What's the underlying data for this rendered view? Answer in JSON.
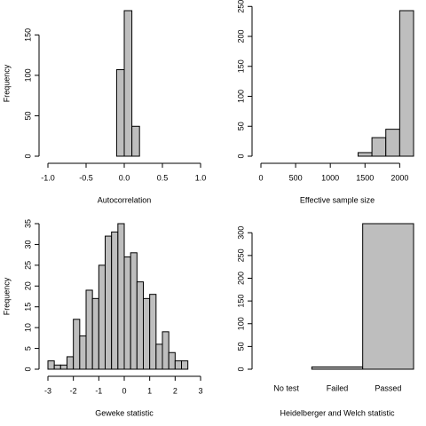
{
  "chart_data": [
    {
      "type": "histogram",
      "xlabel": "Autocorrelation",
      "ylabel": "Frequency",
      "color": "#bebebe",
      "bins": [
        -1,
        -0.9,
        -0.8,
        -0.7,
        -0.6,
        -0.5,
        -0.4,
        -0.3,
        -0.2,
        -0.1,
        0,
        0.1,
        0.2,
        0.3,
        0.4,
        0.5,
        0.6,
        0.7,
        0.8,
        0.9,
        1
      ],
      "values": [
        0,
        0,
        0,
        0,
        0,
        0,
        0,
        0,
        0,
        107,
        180,
        37,
        0,
        0,
        0,
        0,
        0,
        0,
        0,
        0
      ],
      "xlim": [
        -1,
        1
      ],
      "xticks": [
        {
          "value": -1,
          "label": "-1.0"
        },
        {
          "value": -0.5,
          "label": "-0.5"
        },
        {
          "value": 0,
          "label": "0.0"
        },
        {
          "value": 0.5,
          "label": "0.5"
        },
        {
          "value": 1,
          "label": "1.0"
        }
      ],
      "ylim": [
        0,
        180
      ],
      "yticks": [
        0,
        50,
        100,
        150
      ]
    },
    {
      "type": "histogram",
      "xlabel": "Effective sample size",
      "color": "#bebebe",
      "bins": [
        0,
        200,
        400,
        600,
        800,
        1000,
        1200,
        1400,
        1600,
        1800,
        2000,
        2200
      ],
      "values": [
        0,
        0,
        0,
        0,
        0,
        0,
        0,
        6,
        31,
        45,
        243
      ],
      "xlim": [
        0,
        2200
      ],
      "xticks": [
        0,
        500,
        1000,
        1500,
        2000
      ],
      "ylim": [
        0,
        243
      ],
      "yticks": [
        0,
        50,
        100,
        150,
        200,
        250
      ]
    },
    {
      "type": "histogram",
      "xlabel": "Geweke statistic",
      "ylabel": "Frequency",
      "color": "#bebebe",
      "bins": [
        -3,
        -2.75,
        -2.5,
        -2.25,
        -2,
        -1.75,
        -1.5,
        -1.25,
        -1,
        -0.75,
        -0.5,
        -0.25,
        0,
        0.25,
        0.5,
        0.75,
        1,
        1.25,
        1.5,
        1.75,
        2,
        2.25,
        2.5
      ],
      "values": [
        2,
        1,
        1,
        3,
        12,
        8,
        19,
        17,
        25,
        32,
        33,
        35,
        27,
        28,
        21,
        17,
        18,
        6,
        9,
        4,
        2,
        2
      ],
      "xlim": [
        -3,
        3
      ],
      "xticks": [
        -3,
        -2,
        -1,
        0,
        1,
        2,
        3
      ],
      "ylim": [
        0,
        35
      ],
      "yticks": [
        0,
        5,
        10,
        15,
        20,
        25,
        30,
        35
      ]
    },
    {
      "type": "bar",
      "xlabel": "Heidelberger and Welch statistic",
      "color": "#bebebe",
      "categories": [
        "No test",
        "Failed",
        "Passed"
      ],
      "values": [
        0,
        5,
        320
      ],
      "ylim": [
        0,
        320
      ],
      "yticks": [
        0,
        50,
        100,
        150,
        200,
        250,
        300
      ]
    }
  ]
}
